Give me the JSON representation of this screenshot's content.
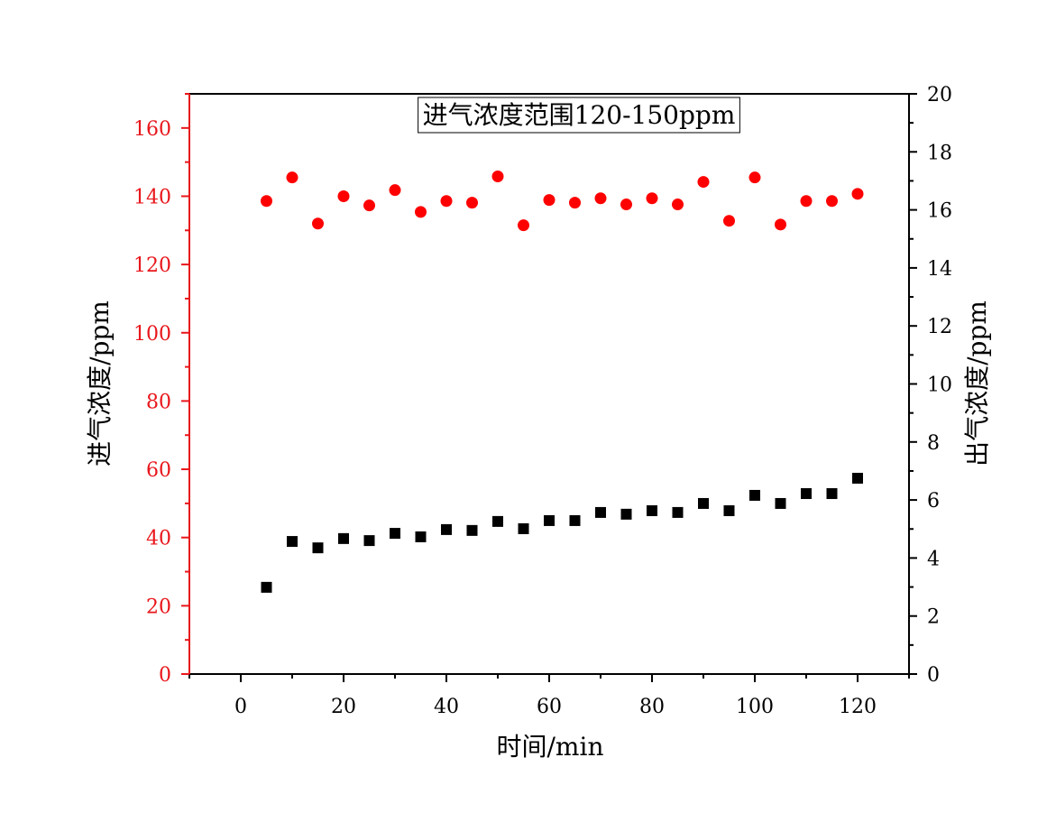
{
  "chart_data": {
    "type": "scatter",
    "title": "进气浓度范围120-150ppm",
    "xlabel": "时间/min",
    "ylabel_left": "进气浓度/ppm",
    "ylabel_right": "出气浓度/ppm",
    "xlim": [
      -10,
      130
    ],
    "ylim_left": [
      0,
      170
    ],
    "ylim_right": [
      0,
      20
    ],
    "x_ticks": [
      0,
      20,
      40,
      60,
      80,
      100,
      120
    ],
    "y_left_ticks": [
      0,
      20,
      40,
      60,
      80,
      100,
      120,
      140,
      160
    ],
    "y_right_ticks": [
      0,
      2,
      4,
      6,
      8,
      10,
      12,
      14,
      16,
      18,
      20
    ],
    "grid": false,
    "colors": {
      "left_axis": "#e8161b",
      "inlet": "#ff0000",
      "outlet": "#000000"
    },
    "x": [
      5,
      10,
      15,
      20,
      25,
      30,
      35,
      40,
      45,
      50,
      55,
      60,
      65,
      70,
      75,
      80,
      85,
      90,
      95,
      100,
      105,
      110,
      115,
      120
    ],
    "series": [
      {
        "name": "进气浓度",
        "axis": "left",
        "marker": "circle",
        "values": [
          138.6,
          145.5,
          132.0,
          140.0,
          137.3,
          141.8,
          135.4,
          138.6,
          138.1,
          145.8,
          131.5,
          138.9,
          138.1,
          139.4,
          137.6,
          139.4,
          137.6,
          144.2,
          132.8,
          145.5,
          131.7,
          138.6,
          138.6,
          140.7
        ]
      },
      {
        "name": "出气浓度",
        "axis": "right",
        "marker": "square",
        "values": [
          2.99,
          4.57,
          4.35,
          4.67,
          4.6,
          4.85,
          4.73,
          4.98,
          4.95,
          5.26,
          5.01,
          5.29,
          5.29,
          5.57,
          5.51,
          5.63,
          5.57,
          5.88,
          5.63,
          6.16,
          5.88,
          6.22,
          6.22,
          6.75
        ]
      }
    ]
  }
}
